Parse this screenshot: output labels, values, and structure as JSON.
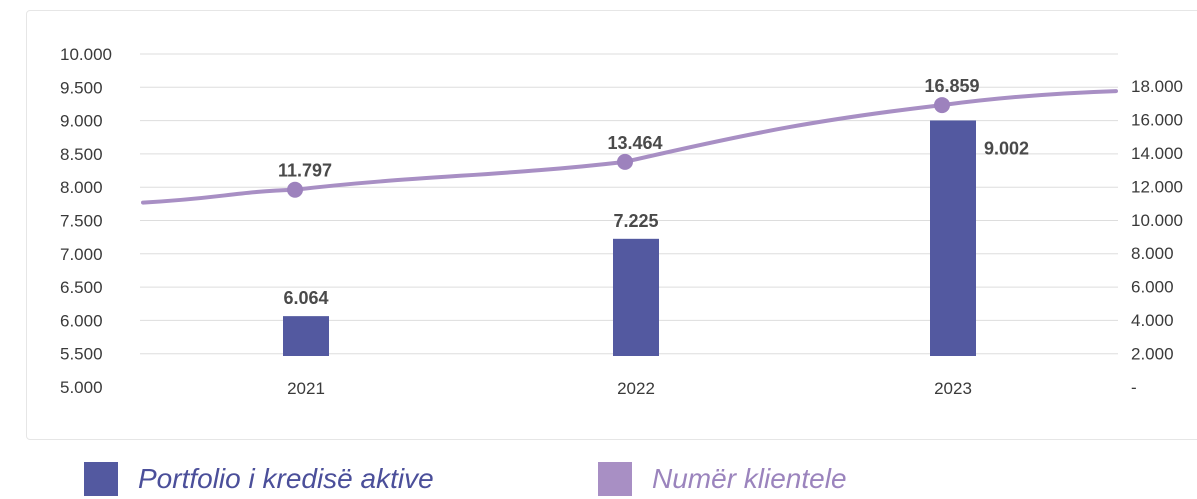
{
  "colors": {
    "bar": "#5359a0",
    "line": "#a88fc4",
    "line_marker": "#9d82bd",
    "legend_bar_text": "#4b4f9a",
    "legend_line_text": "#9b84bd",
    "grid": "#dddddd"
  },
  "chart_data": {
    "type": "bar",
    "categories": [
      "2021",
      "2022",
      "2023"
    ],
    "left_axis": {
      "ylim": [
        5000,
        10000
      ],
      "ticks": [
        5000,
        5500,
        6000,
        6500,
        7000,
        7500,
        8000,
        8500,
        9000,
        9500,
        10000
      ],
      "tick_labels": [
        "5.000",
        "5.500",
        "6.000",
        "6.500",
        "7.000",
        "7.500",
        "8.000",
        "8.500",
        "9.000",
        "9.500",
        "10.000"
      ]
    },
    "right_axis": {
      "ylim": [
        0,
        20000
      ],
      "ticks": [
        0,
        2000,
        4000,
        6000,
        8000,
        10000,
        12000,
        14000,
        16000,
        18000
      ],
      "tick_labels": [
        "-",
        "2.000",
        "4.000",
        "6.000",
        "8.000",
        "10.000",
        "12.000",
        "14.000",
        "16.000",
        "18.000"
      ]
    },
    "grid": true,
    "legend_position": "bottom",
    "series": [
      {
        "name": "Portfolio i kredisë aktive",
        "type": "bar",
        "axis": "left",
        "values": [
          6064,
          7225,
          9002
        ],
        "labels": [
          "6.064",
          "7.225",
          "9.002"
        ]
      },
      {
        "name": "Numër klientele",
        "type": "line",
        "axis": "right",
        "values": [
          11797,
          13464,
          16859
        ],
        "labels": [
          "11.797",
          "13.464",
          "16.859"
        ]
      }
    ]
  }
}
